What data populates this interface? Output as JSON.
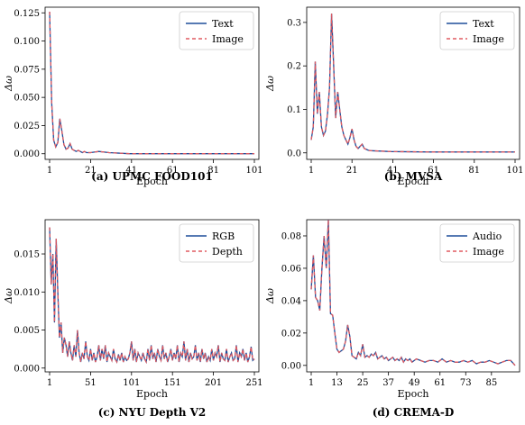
{
  "chart_data": [
    {
      "type": "line",
      "caption": "(a) UPMC FOOD101",
      "xlabel": "Epoch",
      "ylabel": "Δω",
      "xlim": [
        1,
        101
      ],
      "ylim": [
        -0.005,
        0.13
      ],
      "xticks": [
        1,
        21,
        41,
        61,
        81,
        101
      ],
      "yticks": [
        0.0,
        0.025,
        0.05,
        0.075,
        0.1,
        0.125
      ],
      "ytick_labels": [
        "0.000",
        "0.025",
        "0.050",
        "0.075",
        "0.100",
        "0.125"
      ],
      "legend": "top-right",
      "series": [
        {
          "name": "Text",
          "color": "#1f4e9a",
          "style": "solid"
        },
        {
          "name": "Image",
          "color": "#e05a60",
          "style": "dashed"
        }
      ],
      "x": [
        1,
        2,
        3,
        4,
        5,
        6,
        7,
        8,
        9,
        10,
        11,
        12,
        13,
        14,
        15,
        16,
        17,
        18,
        19,
        20,
        21,
        25,
        30,
        40,
        60,
        80,
        101
      ],
      "values": [
        0.126,
        0.045,
        0.012,
        0.006,
        0.01,
        0.031,
        0.02,
        0.008,
        0.004,
        0.005,
        0.009,
        0.004,
        0.003,
        0.002,
        0.003,
        0.002,
        0.001,
        0.002,
        0.001,
        0.001,
        0.001,
        0.002,
        0.001,
        0.0,
        0.0,
        0.0,
        0.0
      ]
    },
    {
      "type": "line",
      "caption": "(b) MVSA",
      "xlabel": "Epoch",
      "ylabel": "Δω",
      "xlim": [
        1,
        101
      ],
      "ylim": [
        -0.015,
        0.335
      ],
      "xticks": [
        1,
        21,
        41,
        61,
        81,
        101
      ],
      "yticks": [
        0.0,
        0.1,
        0.2,
        0.3
      ],
      "ytick_labels": [
        "0.0",
        "0.1",
        "0.2",
        "0.3"
      ],
      "legend": "top-right",
      "series": [
        {
          "name": "Text",
          "color": "#1f4e9a",
          "style": "solid"
        },
        {
          "name": "Image",
          "color": "#e05a60",
          "style": "dashed"
        }
      ],
      "x": [
        1,
        2,
        3,
        4,
        5,
        6,
        7,
        8,
        9,
        10,
        11,
        12,
        13,
        14,
        15,
        16,
        17,
        18,
        19,
        20,
        21,
        22,
        23,
        24,
        25,
        26,
        27,
        28,
        29,
        30,
        40,
        60,
        80,
        101
      ],
      "values": [
        0.03,
        0.06,
        0.21,
        0.09,
        0.14,
        0.06,
        0.04,
        0.05,
        0.09,
        0.15,
        0.32,
        0.2,
        0.08,
        0.14,
        0.1,
        0.06,
        0.04,
        0.03,
        0.02,
        0.035,
        0.055,
        0.03,
        0.015,
        0.01,
        0.015,
        0.02,
        0.01,
        0.008,
        0.006,
        0.005,
        0.003,
        0.002,
        0.002,
        0.002
      ]
    },
    {
      "type": "line",
      "caption": "(c) NYU Depth V2",
      "xlabel": "Epoch",
      "ylabel": "Δω",
      "xlim": [
        1,
        251
      ],
      "ylim": [
        -0.0005,
        0.0195
      ],
      "xticks": [
        1,
        51,
        101,
        151,
        201,
        251
      ],
      "yticks": [
        0.0,
        0.005,
        0.01,
        0.015
      ],
      "ytick_labels": [
        "0.000",
        "0.005",
        "0.010",
        "0.015"
      ],
      "legend": "top-right",
      "series": [
        {
          "name": "RGB",
          "color": "#1f4e9a",
          "style": "solid"
        },
        {
          "name": "Depth",
          "color": "#e05a60",
          "style": "dashed"
        }
      ],
      "x": [
        1,
        3,
        5,
        7,
        9,
        11,
        13,
        15,
        17,
        19,
        21,
        23,
        25,
        27,
        29,
        31,
        33,
        35,
        37,
        39,
        41,
        43,
        45,
        47,
        49,
        51,
        53,
        55,
        57,
        59,
        61,
        63,
        65,
        67,
        69,
        71,
        73,
        75,
        77,
        79,
        81,
        83,
        85,
        87,
        89,
        91,
        93,
        95,
        97,
        99,
        101,
        103,
        105,
        107,
        109,
        111,
        113,
        115,
        117,
        119,
        121,
        123,
        125,
        127,
        129,
        131,
        133,
        135,
        137,
        139,
        141,
        143,
        145,
        147,
        149,
        151,
        153,
        155,
        157,
        159,
        161,
        163,
        165,
        167,
        169,
        171,
        173,
        175,
        177,
        179,
        181,
        183,
        185,
        187,
        189,
        191,
        193,
        195,
        197,
        199,
        201,
        203,
        205,
        207,
        209,
        211,
        213,
        215,
        217,
        219,
        221,
        223,
        225,
        227,
        229,
        231,
        233,
        235,
        237,
        239,
        241,
        243,
        245,
        247,
        249,
        251
      ],
      "values": [
        0.0185,
        0.011,
        0.015,
        0.006,
        0.017,
        0.01,
        0.004,
        0.006,
        0.002,
        0.004,
        0.003,
        0.0015,
        0.0035,
        0.002,
        0.001,
        0.003,
        0.0015,
        0.005,
        0.002,
        0.0008,
        0.002,
        0.0012,
        0.0035,
        0.0015,
        0.001,
        0.0025,
        0.001,
        0.002,
        0.0008,
        0.0015,
        0.003,
        0.001,
        0.0025,
        0.0012,
        0.003,
        0.0008,
        0.002,
        0.0015,
        0.001,
        0.0025,
        0.0012,
        0.0008,
        0.0018,
        0.001,
        0.002,
        0.0008,
        0.0015,
        0.001,
        0.0012,
        0.002,
        0.0035,
        0.001,
        0.0025,
        0.0008,
        0.002,
        0.0015,
        0.001,
        0.002,
        0.0012,
        0.0008,
        0.0025,
        0.001,
        0.003,
        0.0012,
        0.002,
        0.0008,
        0.0025,
        0.0015,
        0.001,
        0.003,
        0.0012,
        0.002,
        0.0008,
        0.0015,
        0.0025,
        0.001,
        0.002,
        0.0012,
        0.003,
        0.0008,
        0.002,
        0.0015,
        0.0035,
        0.001,
        0.0025,
        0.0008,
        0.002,
        0.0012,
        0.0015,
        0.003,
        0.001,
        0.002,
        0.0008,
        0.0025,
        0.0012,
        0.002,
        0.0008,
        0.0015,
        0.001,
        0.0025,
        0.001,
        0.002,
        0.0015,
        0.003,
        0.0008,
        0.002,
        0.0012,
        0.001,
        0.0025,
        0.0008,
        0.0015,
        0.002,
        0.001,
        0.0012,
        0.003,
        0.0008,
        0.002,
        0.0015,
        0.0025,
        0.001,
        0.002,
        0.0008,
        0.0015,
        0.0028,
        0.001,
        0.0012
      ]
    },
    {
      "type": "line",
      "caption": "(d) CREMA-D",
      "xlabel": "Epoch",
      "ylabel": "Δω",
      "xlim": [
        1,
        96
      ],
      "ylim": [
        -0.004,
        0.09
      ],
      "xticks": [
        1,
        13,
        25,
        37,
        49,
        61,
        73,
        85
      ],
      "yticks": [
        0.0,
        0.02,
        0.04,
        0.06,
        0.08
      ],
      "ytick_labels": [
        "0.00",
        "0.02",
        "0.04",
        "0.06",
        "0.08"
      ],
      "legend": "top-right",
      "series": [
        {
          "name": "Audio",
          "color": "#1f4e9a",
          "style": "solid"
        },
        {
          "name": "Image",
          "color": "#e05a60",
          "style": "dashed"
        }
      ],
      "x": [
        1,
        2,
        3,
        4,
        5,
        6,
        7,
        8,
        9,
        10,
        11,
        12,
        13,
        14,
        15,
        16,
        17,
        18,
        19,
        20,
        21,
        22,
        23,
        24,
        25,
        26,
        27,
        28,
        29,
        30,
        31,
        32,
        33,
        34,
        35,
        36,
        37,
        38,
        39,
        40,
        41,
        42,
        43,
        44,
        45,
        46,
        47,
        48,
        49,
        50,
        52,
        54,
        56,
        58,
        60,
        62,
        64,
        66,
        68,
        70,
        72,
        74,
        76,
        78,
        80,
        82,
        84,
        86,
        88,
        90,
        92,
        94,
        96
      ],
      "values": [
        0.047,
        0.068,
        0.042,
        0.04,
        0.034,
        0.06,
        0.08,
        0.06,
        0.09,
        0.032,
        0.031,
        0.02,
        0.01,
        0.008,
        0.009,
        0.01,
        0.015,
        0.025,
        0.018,
        0.006,
        0.005,
        0.004,
        0.008,
        0.006,
        0.013,
        0.005,
        0.006,
        0.005,
        0.007,
        0.006,
        0.008,
        0.004,
        0.005,
        0.006,
        0.004,
        0.005,
        0.003,
        0.004,
        0.005,
        0.003,
        0.004,
        0.003,
        0.005,
        0.002,
        0.004,
        0.003,
        0.004,
        0.002,
        0.003,
        0.004,
        0.003,
        0.002,
        0.003,
        0.003,
        0.002,
        0.004,
        0.002,
        0.003,
        0.002,
        0.002,
        0.003,
        0.002,
        0.003,
        0.001,
        0.002,
        0.002,
        0.003,
        0.002,
        0.001,
        0.002,
        0.003,
        0.003,
        0.0
      ]
    }
  ]
}
